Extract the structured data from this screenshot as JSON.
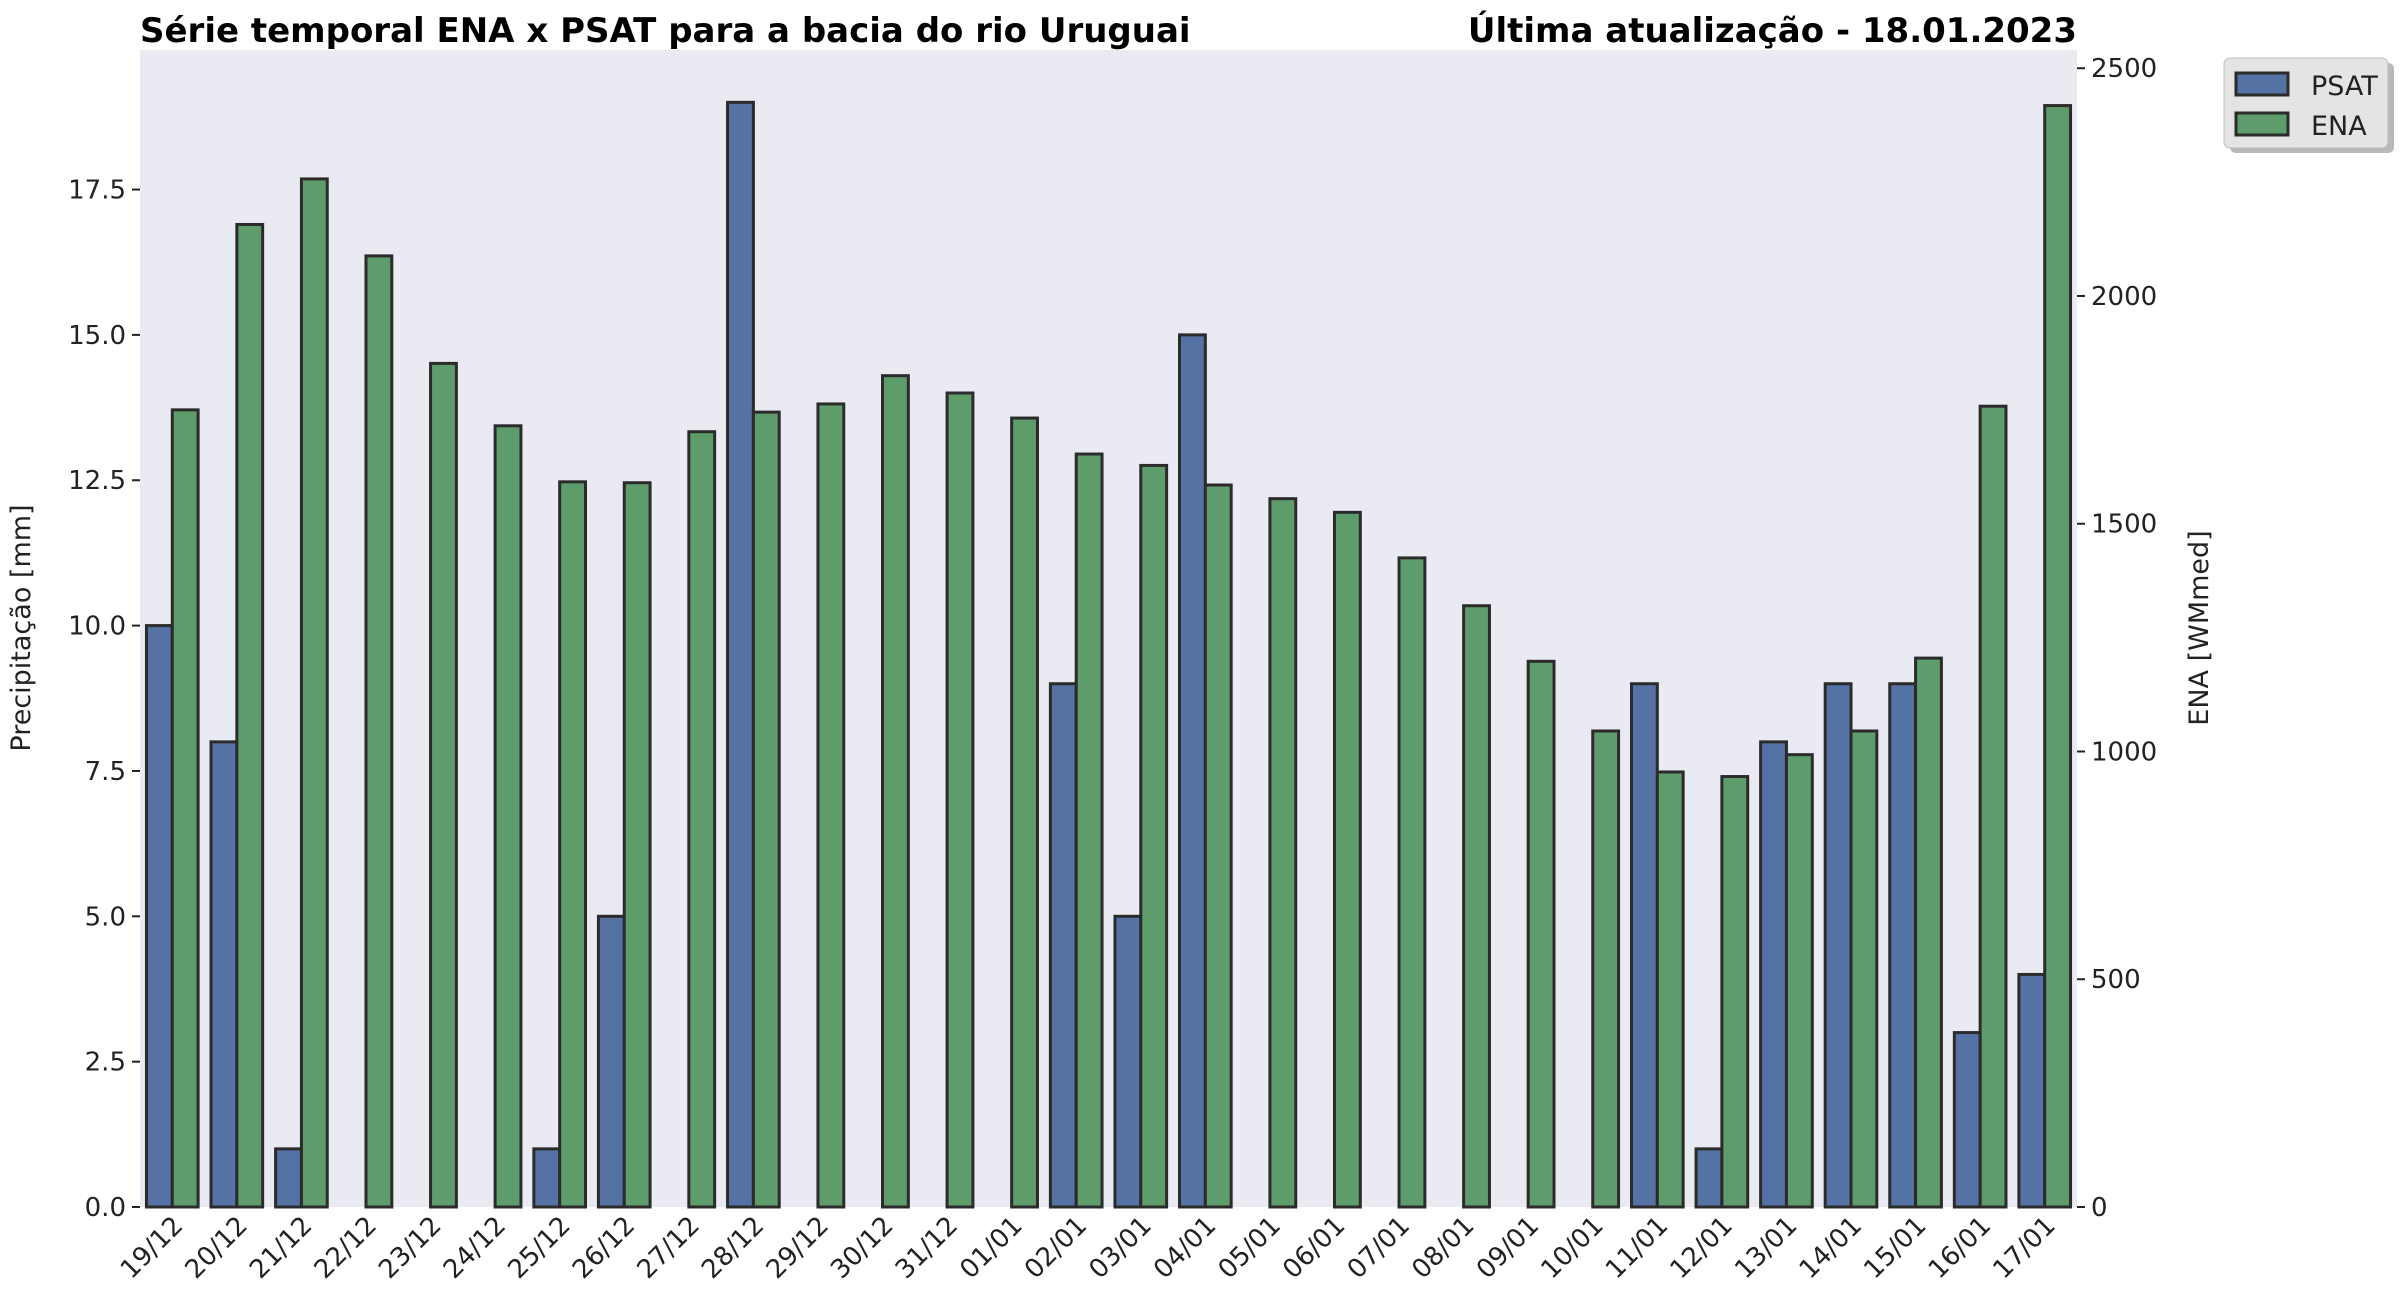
{
  "chart_data": {
    "type": "bar",
    "title_left": "Série temporal ENA x PSAT para a bacia do rio Uruguai",
    "title_right": "Última atualização - 18.01.2023",
    "ylabel_left": "Precipitação [mm]",
    "ylabel_right": "ENA [WMmed]",
    "ylim_left": [
      0,
      19.9
    ],
    "ylim_right": [
      0,
      2540
    ],
    "yticks_left": [
      "0.0",
      "2.5",
      "5.0",
      "7.5",
      "10.0",
      "12.5",
      "15.0",
      "17.5"
    ],
    "yticks_left_values": [
      0,
      2.5,
      5,
      7.5,
      10,
      12.5,
      15,
      17.5
    ],
    "yticks_right": [
      "0",
      "500",
      "1000",
      "1500",
      "2000",
      "2500"
    ],
    "yticks_right_values": [
      0,
      500,
      1000,
      1500,
      2000,
      2500
    ],
    "grid": false,
    "legend_position": "outside-top-right",
    "categories": [
      "19/12",
      "20/12",
      "21/12",
      "22/12",
      "23/12",
      "24/12",
      "25/12",
      "26/12",
      "27/12",
      "28/12",
      "29/12",
      "30/12",
      "31/12",
      "01/01",
      "02/01",
      "03/01",
      "04/01",
      "05/01",
      "06/01",
      "07/01",
      "08/01",
      "09/01",
      "10/01",
      "11/01",
      "12/01",
      "13/01",
      "14/01",
      "15/01",
      "16/01",
      "17/01"
    ],
    "series": [
      {
        "name": "PSAT",
        "axis": "left",
        "color": "#5572a4",
        "values": [
          10,
          8,
          1,
          0,
          0,
          0,
          1,
          5,
          0,
          19,
          0,
          0,
          0,
          0,
          9,
          5,
          15,
          0,
          0,
          0,
          0,
          0,
          0,
          9,
          1,
          8,
          9,
          9,
          3,
          4
        ]
      },
      {
        "name": "ENA",
        "axis": "right",
        "color": "#5e9d6b",
        "values": [
          1750,
          2157,
          2257,
          2088,
          1852,
          1715,
          1592,
          1590,
          1702,
          1745,
          1763,
          1825,
          1787,
          1732,
          1653,
          1628,
          1585,
          1555,
          1525,
          1425,
          1320,
          1198,
          1045,
          955,
          945,
          993,
          1045,
          1205,
          1758,
          2418
        ]
      }
    ]
  }
}
